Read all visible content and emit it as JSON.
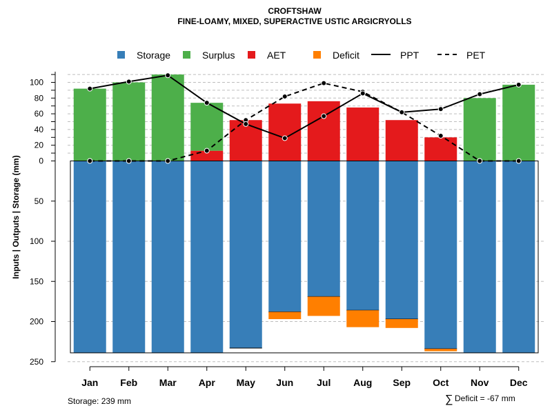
{
  "chart_data": {
    "type": "bar",
    "title": "CROFTSHAW",
    "subtitle": "FINE-LOAMY, MIXED, SUPERACTIVE USTIC ARGICRYOLLS",
    "ylabel": "Inputs | Outputs | Storage    (mm)",
    "ylim": [
      -250,
      110
    ],
    "y_ticks_upper": [
      0,
      20,
      40,
      60,
      80,
      100
    ],
    "y_ticks_lower": [
      50,
      100,
      150,
      200,
      250
    ],
    "categories": [
      "Jan",
      "Feb",
      "Mar",
      "Apr",
      "May",
      "Jun",
      "Jul",
      "Aug",
      "Sep",
      "Oct",
      "Nov",
      "Dec"
    ],
    "legend": [
      {
        "label": "Storage",
        "type": "box",
        "color": "#377EB8"
      },
      {
        "label": "Surplus",
        "type": "box",
        "color": "#4DAF4A"
      },
      {
        "label": "AET",
        "type": "box",
        "color": "#E41A1C"
      },
      {
        "label": "Deficit",
        "type": "box",
        "color": "#FF7F00"
      },
      {
        "label": "PPT",
        "type": "solid"
      },
      {
        "label": "PET",
        "type": "dashed"
      }
    ],
    "colors": {
      "storage": "#377EB8",
      "surplus": "#4DAF4A",
      "aet": "#E41A1C",
      "deficit": "#FF7F00"
    },
    "series": [
      {
        "name": "Storage",
        "values": [
          239,
          239,
          239,
          239,
          233,
          188,
          169,
          186,
          197,
          234,
          239,
          239
        ]
      },
      {
        "name": "Surplus",
        "values": [
          92,
          100,
          110,
          61,
          0,
          0,
          0,
          0,
          0,
          0,
          80,
          97
        ]
      },
      {
        "name": "AET",
        "values": [
          0,
          0,
          0,
          13,
          52,
          73,
          76,
          68,
          52,
          30,
          0,
          0
        ]
      },
      {
        "name": "Deficit",
        "values": [
          0,
          0,
          0,
          0,
          0,
          9,
          24,
          21,
          11,
          3,
          0,
          0
        ]
      },
      {
        "name": "PPT",
        "values": [
          92,
          101,
          109,
          74,
          47,
          29,
          57,
          86,
          62,
          66,
          85,
          97
        ]
      },
      {
        "name": "PET",
        "values": [
          0,
          0,
          0,
          13,
          52,
          82,
          99,
          88,
          62,
          32,
          0,
          0
        ]
      }
    ],
    "storage_capacity": 239,
    "footer_left": "Storage: 239 mm",
    "footer_sigma": "∑",
    "footer_right": "Deficit = -67 mm"
  }
}
